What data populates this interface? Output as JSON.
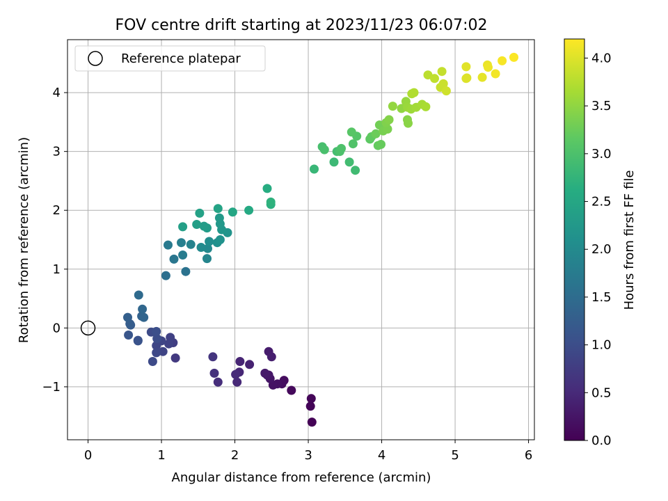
{
  "chart_data": {
    "type": "scatter",
    "title": "FOV centre drift starting at 2023/11/23 06:07:02",
    "xlabel": "Angular distance from reference (arcmin)",
    "ylabel": "Rotation from reference (arcmin)",
    "xlim": [
      -0.28,
      6.08
    ],
    "ylim": [
      -1.9,
      4.9
    ],
    "xticks": [
      0,
      1,
      2,
      3,
      4,
      5,
      6
    ],
    "xtick_labels": [
      "0",
      "1",
      "2",
      "3",
      "4",
      "5",
      "6"
    ],
    "yticks": [
      -1,
      0,
      1,
      2,
      3,
      4
    ],
    "ytick_labels": [
      "−1",
      "0",
      "1",
      "2",
      "3",
      "4"
    ],
    "grid": true,
    "colormap": "viridis",
    "colorbar": {
      "label": "Hours from first FF file",
      "lim": [
        0.0,
        4.2
      ],
      "ticks": [
        0.0,
        0.5,
        1.0,
        1.5,
        2.0,
        2.5,
        3.0,
        3.5,
        4.0
      ],
      "tick_labels": [
        "0.0",
        "0.5",
        "1.0",
        "1.5",
        "2.0",
        "2.5",
        "3.0",
        "3.5",
        "4.0"
      ]
    },
    "legend": {
      "position": "upper-left",
      "entries": [
        "Reference platepar"
      ]
    },
    "reference_point": {
      "x": 0,
      "y": 0,
      "label": "Reference platepar"
    },
    "points": [
      [
        3.05,
        -1.6,
        0.03
      ],
      [
        3.03,
        -1.33,
        0.05
      ],
      [
        3.04,
        -1.2,
        0.06
      ],
      [
        2.77,
        -1.06,
        0.1
      ],
      [
        2.67,
        -0.89,
        0.14
      ],
      [
        2.64,
        -0.95,
        0.17
      ],
      [
        2.58,
        -0.95,
        0.19
      ],
      [
        2.52,
        -0.97,
        0.21
      ],
      [
        2.48,
        -0.86,
        0.24
      ],
      [
        2.46,
        -0.8,
        0.26
      ],
      [
        2.44,
        -0.8,
        0.28
      ],
      [
        2.41,
        -0.77,
        0.31
      ],
      [
        2.46,
        -0.4,
        0.33
      ],
      [
        2.5,
        -0.49,
        0.36
      ],
      [
        2.2,
        -0.62,
        0.4
      ],
      [
        2.07,
        -0.57,
        0.44
      ],
      [
        2.06,
        -0.75,
        0.47
      ],
      [
        2.03,
        -0.92,
        0.49
      ],
      [
        2.01,
        -0.79,
        0.51
      ],
      [
        1.77,
        -0.92,
        0.56
      ],
      [
        1.72,
        -0.77,
        0.6
      ],
      [
        1.7,
        -0.49,
        0.65
      ],
      [
        1.19,
        -0.51,
        0.72
      ],
      [
        1.16,
        -0.25,
        0.78
      ],
      [
        1.12,
        -0.16,
        0.82
      ],
      [
        1.1,
        -0.27,
        0.84
      ],
      [
        1.02,
        -0.4,
        0.86
      ],
      [
        1.0,
        -0.22,
        0.88
      ],
      [
        0.93,
        -0.3,
        0.9
      ],
      [
        0.93,
        -0.42,
        0.92
      ],
      [
        0.88,
        -0.57,
        0.95
      ],
      [
        0.86,
        -0.07,
        0.97
      ],
      [
        0.94,
        -0.18,
        0.99
      ],
      [
        0.93,
        -0.06,
        1.02
      ],
      [
        0.68,
        -0.21,
        1.05
      ],
      [
        0.68,
        -0.22,
        1.08
      ],
      [
        0.55,
        -0.12,
        1.13
      ],
      [
        0.58,
        0.05,
        1.2
      ],
      [
        0.57,
        0.07,
        1.24
      ],
      [
        0.54,
        0.18,
        1.28
      ],
      [
        0.73,
        0.2,
        1.33
      ],
      [
        0.76,
        0.18,
        1.37
      ],
      [
        0.74,
        0.32,
        1.41
      ],
      [
        0.69,
        0.56,
        1.46
      ],
      [
        1.06,
        0.89,
        1.55
      ],
      [
        1.33,
        0.96,
        1.6
      ],
      [
        1.17,
        1.17,
        1.66
      ],
      [
        1.09,
        1.41,
        1.72
      ],
      [
        1.29,
        1.24,
        1.76
      ],
      [
        1.27,
        1.45,
        1.81
      ],
      [
        1.4,
        1.42,
        1.86
      ],
      [
        1.62,
        1.18,
        1.92
      ],
      [
        1.63,
        1.35,
        1.96
      ],
      [
        1.54,
        1.37,
        2.0
      ],
      [
        1.65,
        1.47,
        2.05
      ],
      [
        1.76,
        1.45,
        2.1
      ],
      [
        1.8,
        1.5,
        2.13
      ],
      [
        1.9,
        1.62,
        2.18
      ],
      [
        1.82,
        1.67,
        2.21
      ],
      [
        1.8,
        1.77,
        2.24
      ],
      [
        1.79,
        1.87,
        2.27
      ],
      [
        1.62,
        1.7,
        2.3
      ],
      [
        1.58,
        1.73,
        2.32
      ],
      [
        1.48,
        1.76,
        2.35
      ],
      [
        1.29,
        1.72,
        2.38
      ],
      [
        1.52,
        1.95,
        2.41
      ],
      [
        1.77,
        2.03,
        2.45
      ],
      [
        1.97,
        1.97,
        2.49
      ],
      [
        2.19,
        2.0,
        2.55
      ],
      [
        2.44,
        2.37,
        2.61
      ],
      [
        2.49,
        2.1,
        2.66
      ],
      [
        2.49,
        2.14,
        2.7
      ],
      [
        3.08,
        2.7,
        2.8
      ],
      [
        3.35,
        2.82,
        2.84
      ],
      [
        3.64,
        2.68,
        2.88
      ],
      [
        3.56,
        2.82,
        2.9
      ],
      [
        3.39,
        3.0,
        2.93
      ],
      [
        3.19,
        3.08,
        2.95
      ],
      [
        3.22,
        3.03,
        2.97
      ],
      [
        3.43,
        3.0,
        2.99
      ],
      [
        3.45,
        3.05,
        3.01
      ],
      [
        3.61,
        3.13,
        3.04
      ],
      [
        3.66,
        3.26,
        3.07
      ],
      [
        3.59,
        3.33,
        3.1
      ],
      [
        3.84,
        3.21,
        3.15
      ],
      [
        3.86,
        3.25,
        3.17
      ],
      [
        3.95,
        3.1,
        3.2
      ],
      [
        3.99,
        3.12,
        3.22
      ],
      [
        3.92,
        3.3,
        3.25
      ],
      [
        3.97,
        3.45,
        3.3
      ],
      [
        4.02,
        3.35,
        3.34
      ],
      [
        4.08,
        3.38,
        3.36
      ],
      [
        4.06,
        3.49,
        3.39
      ],
      [
        4.1,
        3.54,
        3.42
      ],
      [
        4.35,
        3.54,
        3.44
      ],
      [
        4.36,
        3.48,
        3.46
      ],
      [
        4.27,
        3.73,
        3.5
      ],
      [
        4.15,
        3.77,
        3.52
      ],
      [
        4.33,
        3.85,
        3.55
      ],
      [
        4.35,
        3.75,
        3.57
      ],
      [
        4.4,
        3.72,
        3.59
      ],
      [
        4.47,
        3.75,
        3.62
      ],
      [
        4.55,
        3.8,
        3.65
      ],
      [
        4.6,
        3.76,
        3.67
      ],
      [
        4.41,
        3.98,
        3.7
      ],
      [
        4.44,
        4.0,
        3.72
      ],
      [
        4.63,
        4.3,
        3.78
      ],
      [
        4.72,
        4.24,
        3.81
      ],
      [
        4.82,
        4.36,
        3.84
      ],
      [
        4.8,
        4.09,
        3.86
      ],
      [
        4.84,
        4.15,
        3.88
      ],
      [
        4.88,
        4.03,
        3.9
      ],
      [
        5.16,
        4.25,
        3.98
      ],
      [
        5.15,
        4.24,
        4.0
      ],
      [
        5.15,
        4.44,
        4.02
      ],
      [
        5.37,
        4.26,
        4.05
      ],
      [
        5.44,
        4.47,
        4.08
      ],
      [
        5.45,
        4.43,
        4.1
      ],
      [
        5.55,
        4.32,
        4.13
      ],
      [
        5.64,
        4.54,
        4.16
      ],
      [
        5.8,
        4.6,
        4.19
      ]
    ]
  }
}
